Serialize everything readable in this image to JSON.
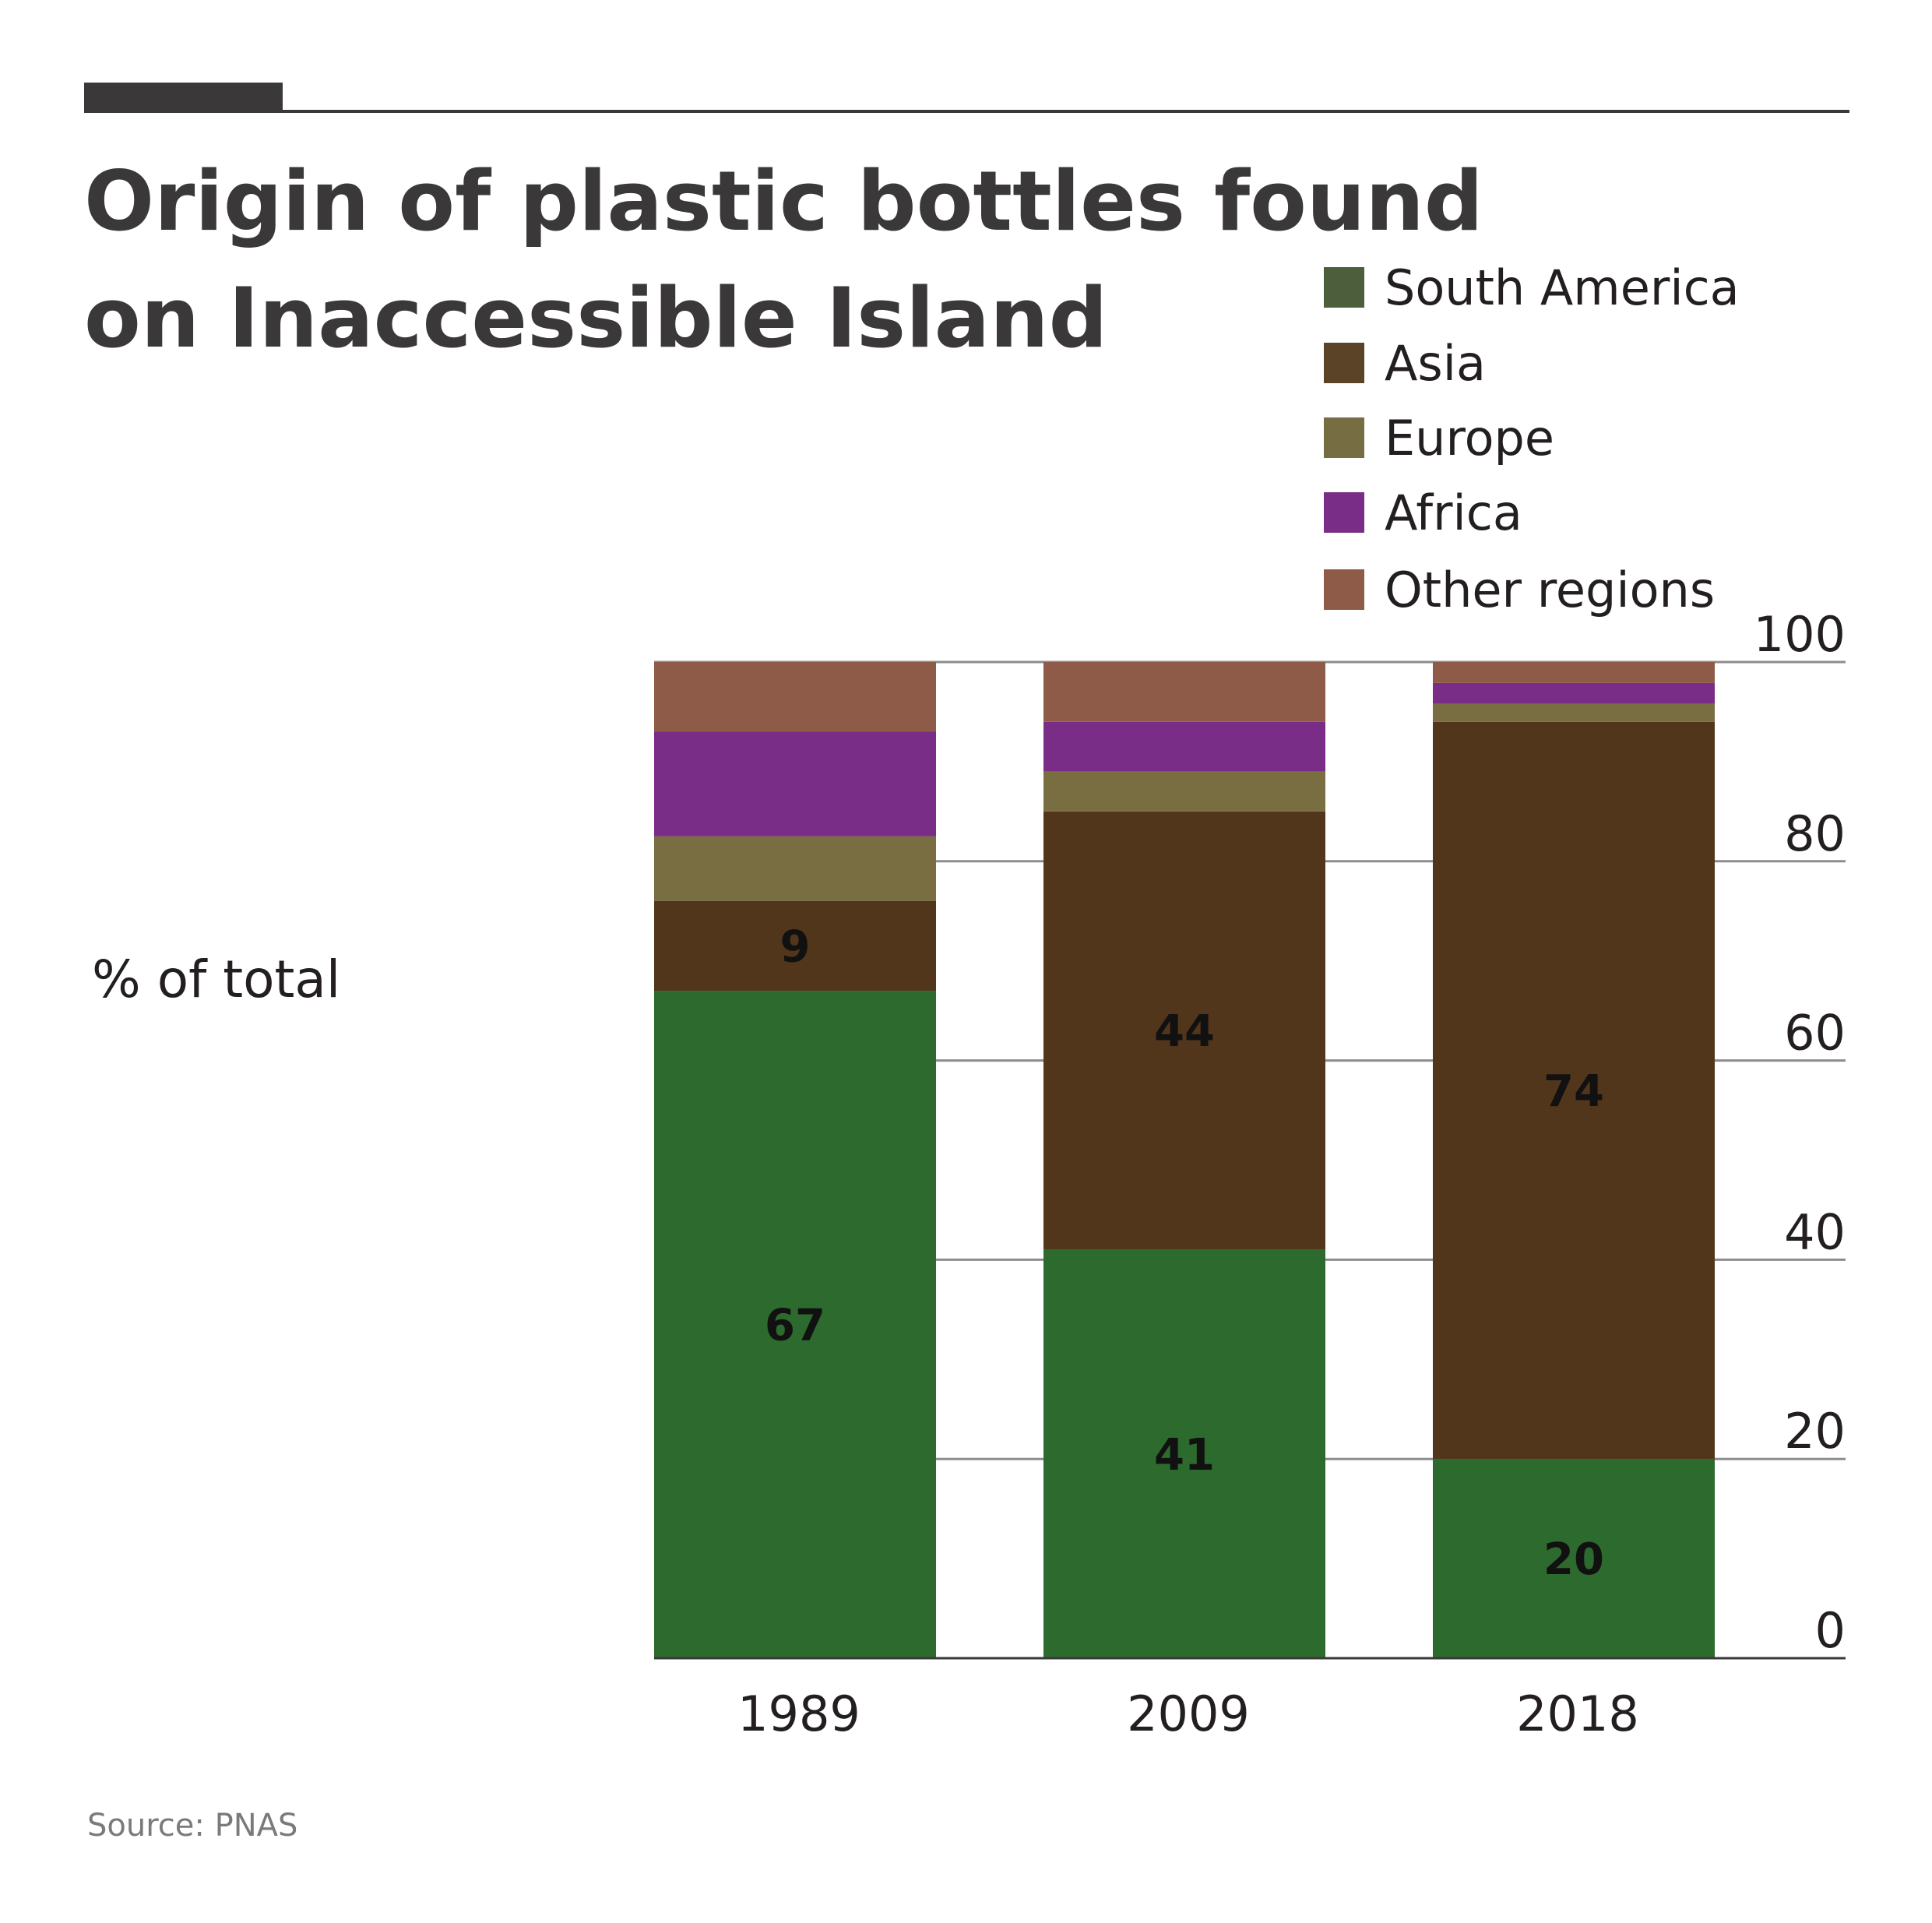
{
  "title_line1": "Origin of plastic bottles found",
  "title_line2": "on Inaccessible Island",
  "source": "Source: PNAS",
  "colors": {
    "accent_bar": "#3a3839",
    "rule": "#3a3839",
    "grid": "#8c8c8c"
  },
  "chart_data": {
    "type": "bar",
    "stacked": true,
    "ylabel": "% of total",
    "ylim": [
      0,
      100
    ],
    "yticks": [
      0,
      20,
      40,
      60,
      80,
      100
    ],
    "y_axis_side": "right",
    "grid": true,
    "legend_position": "top-right",
    "categories": [
      "1989",
      "2009",
      "2018"
    ],
    "series": [
      {
        "name": "South America",
        "color": "#2d6a2d",
        "legend_color": "#4d5e3c",
        "values": [
          67,
          41,
          20
        ],
        "labels": [
          "67",
          "41",
          "20"
        ]
      },
      {
        "name": "Asia",
        "color": "#52361c",
        "legend_color": "#5a4326",
        "values": [
          9,
          44,
          74
        ],
        "labels": [
          "9",
          "44",
          "74"
        ]
      },
      {
        "name": "Europe",
        "color": "#786e42",
        "legend_color": "#776d42",
        "values": [
          6.5,
          4,
          1.8
        ],
        "labels": [
          "",
          "",
          ""
        ]
      },
      {
        "name": "Africa",
        "color": "#7a2d86",
        "legend_color": "#7a2d86",
        "values": [
          10.5,
          5,
          2.1
        ],
        "labels": [
          "",
          "",
          ""
        ]
      },
      {
        "name": "Other regions",
        "color": "#8e5b48",
        "legend_color": "#8e5b48",
        "values": [
          7,
          6,
          2.1
        ],
        "labels": [
          "",
          "",
          ""
        ]
      }
    ]
  }
}
